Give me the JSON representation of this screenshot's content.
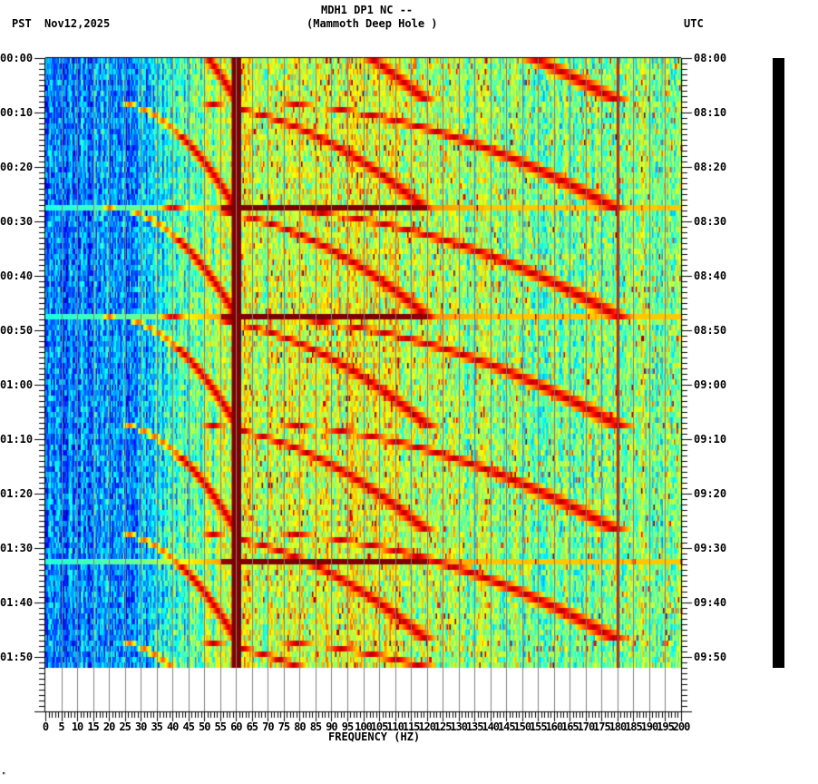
{
  "header": {
    "title_line1": "MDH1 DP1 NC --",
    "title_line2": "(Mammoth Deep Hole )",
    "timezone_left": "PST",
    "date": "Nov12,2025",
    "timezone_right": "UTC"
  },
  "footer": {
    "corner_mark": "ᴹ"
  },
  "colors": {
    "background": "#ffffff",
    "axis": "#000000",
    "gridline": "#808080",
    "noise_line_60hz": "#800000",
    "colormap": [
      "#00007f",
      "#0000ff",
      "#007fff",
      "#00ffff",
      "#7fff7f",
      "#ffff00",
      "#ff7f00",
      "#ff0000",
      "#7f0000"
    ]
  },
  "chart_data": {
    "type": "heatmap",
    "title": "MDH1 DP1 NC -- (Mammoth Deep Hole )",
    "subtitle": "Nov12,2025",
    "xlabel": "FREQUENCY (HZ)",
    "ylabel_left": "PST",
    "ylabel_right": "UTC",
    "xlim": [
      0,
      200
    ],
    "x_major_step": 5,
    "x_minor_step": 1,
    "x_tick_labels": [
      "0",
      "5",
      "10",
      "15",
      "20",
      "25",
      "30",
      "35",
      "40",
      "45",
      "50",
      "55",
      "60",
      "65",
      "70",
      "75",
      "80",
      "85",
      "90",
      "95",
      "100",
      "105",
      "110",
      "115",
      "120",
      "125",
      "130",
      "135",
      "140",
      "145",
      "150",
      "155",
      "160",
      "165",
      "170",
      "175",
      "180",
      "185",
      "190",
      "195",
      "200"
    ],
    "y_minor_step_minutes": 1,
    "y_tick_labels_left": [
      "00:00",
      "00:10",
      "00:20",
      "00:30",
      "00:40",
      "00:50",
      "01:00",
      "01:10",
      "01:20",
      "01:30",
      "01:40",
      "01:50"
    ],
    "y_tick_labels_right": [
      "08:00",
      "08:10",
      "08:20",
      "08:30",
      "08:40",
      "08:50",
      "09:00",
      "09:10",
      "09:20",
      "09:30",
      "09:40",
      "09:50"
    ],
    "time_span_minutes": 112,
    "grid": true,
    "persistent_lines_hz": [
      {
        "freq": 60,
        "width_hz": 1.6,
        "intensity": 1.0
      },
      {
        "freq": 180,
        "width_hz": 0.4,
        "intensity": 0.95
      }
    ],
    "broadband_events_minutes": [
      27.5,
      47.5,
      92.5
    ],
    "chirp_cycle_minutes": 20,
    "chirp_cycle_starts_minutes": [
      -12,
      8,
      27.5,
      47.5,
      67,
      87,
      107
    ],
    "chirp_harmonics_hz": [
      {
        "start_hz": 20,
        "end_hz": 60
      },
      {
        "start_hz": 40,
        "end_hz": 120
      },
      {
        "start_hz": 60,
        "end_hz": 180
      }
    ],
    "background_level_by_freq": [
      {
        "hz": 0,
        "level": 0.22
      },
      {
        "hz": 30,
        "level": 0.3
      },
      {
        "hz": 45,
        "level": 0.45
      },
      {
        "hz": 60,
        "level": 0.58
      },
      {
        "hz": 110,
        "level": 0.58
      },
      {
        "hz": 140,
        "level": 0.5
      },
      {
        "hz": 200,
        "level": 0.5
      }
    ]
  }
}
